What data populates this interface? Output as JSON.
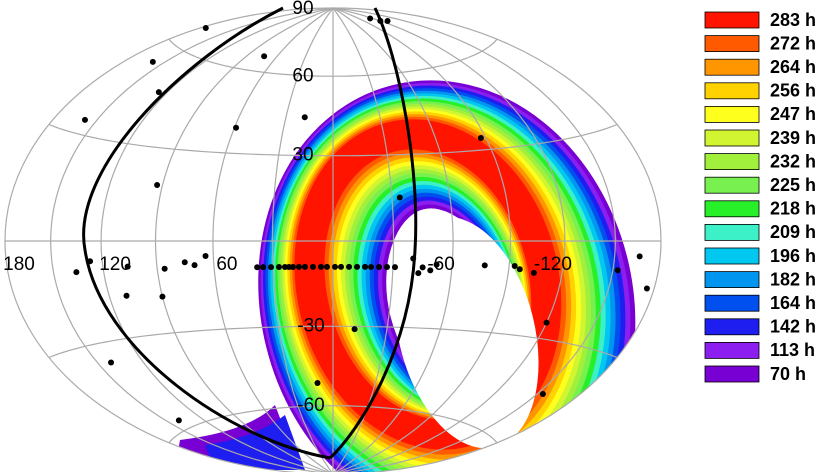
{
  "chart_data": {
    "type": "skymap",
    "projection": "hammer",
    "grid": true,
    "xticks": [
      180,
      120,
      60,
      -60,
      -120
    ],
    "yticks": [
      90,
      60,
      30,
      -30,
      -60
    ],
    "point_color": "#000000",
    "points": {
      "lon": [
        176,
        159,
        73,
        126,
        158,
        18,
        59,
        93,
        -87,
        -34,
        38,
        35,
        31,
        27,
        24,
        22,
        20,
        17,
        14,
        10,
        6,
        3,
        -1,
        -4,
        -8,
        -12,
        -16,
        -19,
        -23,
        -27,
        -31,
        136,
        127,
        75,
        70,
        106,
        86,
        110,
        90,
        64,
        -166,
        -153,
        -175,
        -45,
        -49,
        -52,
        -43,
        -40,
        -77,
        -96,
        -104,
        -93,
        -12,
        -120,
        11,
        141,
        140,
        -154,
        -120,
        -130,
        -115
      ],
      "lat": [
        67,
        54,
        66,
        47,
        34,
        44,
        39,
        18,
        34,
        15,
        -9,
        -9,
        -9,
        -9,
        -9,
        -9,
        -9,
        -9,
        -9,
        -9,
        -9,
        -9,
        -9,
        -9,
        -9,
        -9,
        -9,
        -9,
        -9,
        -9,
        -9,
        -9,
        -6,
        -7,
        -8,
        -8,
        -9,
        -17,
        -18,
        -5,
        -4,
        -8,
        -12,
        -9,
        -10,
        -8,
        -11,
        -6,
        -8,
        -9,
        -10,
        -8,
        -31,
        -25,
        -51,
        -36,
        -57,
        -45,
        80,
        79,
        82
      ]
    },
    "legend": [
      {
        "value": 283,
        "label": "283 h",
        "color": "#ff1400"
      },
      {
        "value": 272,
        "label": "272 h",
        "color": "#ff5a00"
      },
      {
        "value": 264,
        "label": "264 h",
        "color": "#ff9600"
      },
      {
        "value": 256,
        "label": "256 h",
        "color": "#ffd200"
      },
      {
        "value": 247,
        "label": "247 h",
        "color": "#ffff1e"
      },
      {
        "value": 239,
        "label": "239 h",
        "color": "#d2f532"
      },
      {
        "value": 232,
        "label": "232 h",
        "color": "#a0f03c"
      },
      {
        "value": 225,
        "label": "225 h",
        "color": "#78f050"
      },
      {
        "value": 218,
        "label": "218 h",
        "color": "#28f028"
      },
      {
        "value": 209,
        "label": "209 h",
        "color": "#3cf0c8"
      },
      {
        "value": 196,
        "label": "196 h",
        "color": "#00c8f0"
      },
      {
        "value": 182,
        "label": "182 h",
        "color": "#0096f0"
      },
      {
        "value": 164,
        "label": "164 h",
        "color": "#0050f0"
      },
      {
        "value": 142,
        "label": "142 h",
        "color": "#1e1ef0"
      },
      {
        "value": 113,
        "label": "113 h",
        "color": "#8c1ef0"
      },
      {
        "value": 70,
        "label": "70 h",
        "color": "#7800d2"
      }
    ]
  }
}
